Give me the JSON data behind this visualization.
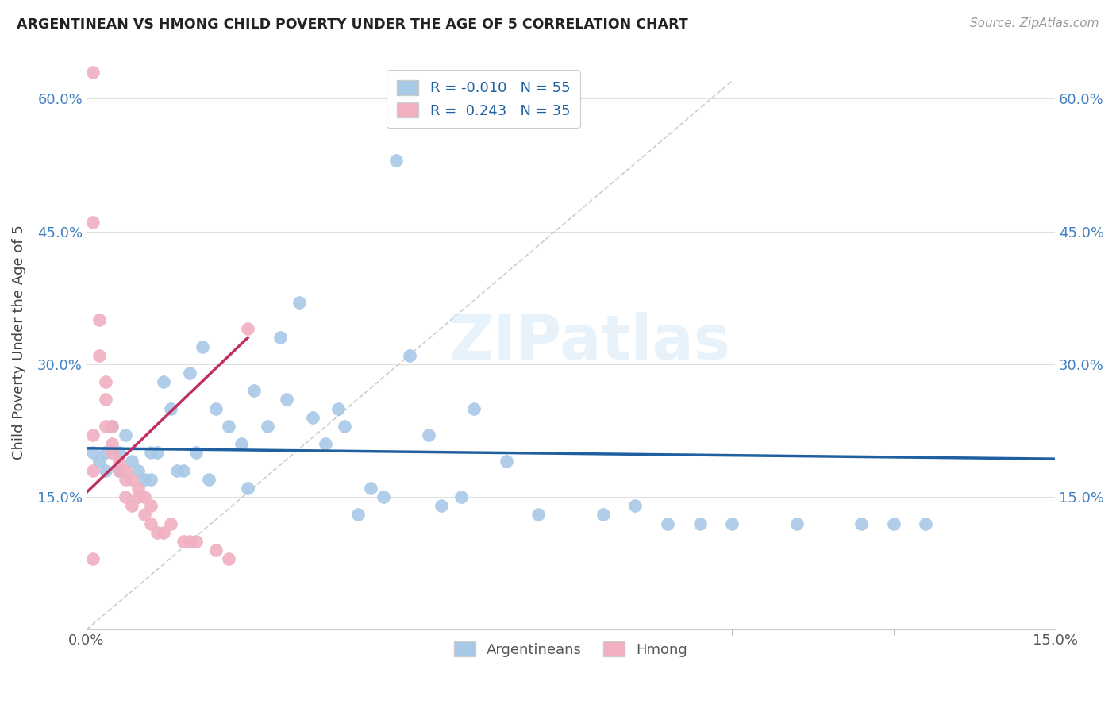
{
  "title": "ARGENTINEAN VS HMONG CHILD POVERTY UNDER THE AGE OF 5 CORRELATION CHART",
  "source": "Source: ZipAtlas.com",
  "ylabel": "Child Poverty Under the Age of 5",
  "xlim": [
    0.0,
    0.15
  ],
  "ylim": [
    0.0,
    0.65
  ],
  "yticks": [
    0.15,
    0.3,
    0.45,
    0.6
  ],
  "ytick_labels": [
    "15.0%",
    "30.0%",
    "45.0%",
    "60.0%"
  ],
  "xtick_left": "0.0%",
  "xtick_right": "15.0%",
  "background_color": "#ffffff",
  "grid_color": "#e0e0e0",
  "watermark_text": "ZIPatlas",
  "legend_r_arg": "-0.010",
  "legend_n_arg": "55",
  "legend_r_hmong": "0.243",
  "legend_n_hmong": "35",
  "arg_color": "#a8c8e8",
  "hmong_color": "#f0b0c0",
  "arg_trend_color": "#2060a0",
  "hmong_trend_color": "#c03060",
  "diag_color": "#cccccc",
  "tick_color": "#4080c0",
  "arg_x": [
    0.001,
    0.002,
    0.003,
    0.003,
    0.004,
    0.005,
    0.005,
    0.006,
    0.007,
    0.008,
    0.009,
    0.01,
    0.01,
    0.011,
    0.012,
    0.013,
    0.014,
    0.015,
    0.016,
    0.017,
    0.018,
    0.019,
    0.02,
    0.022,
    0.024,
    0.025,
    0.026,
    0.028,
    0.03,
    0.031,
    0.033,
    0.035,
    0.037,
    0.039,
    0.04,
    0.042,
    0.044,
    0.046,
    0.048,
    0.05,
    0.053,
    0.055,
    0.058,
    0.06,
    0.065,
    0.07,
    0.08,
    0.085,
    0.09,
    0.095,
    0.1,
    0.11,
    0.12,
    0.125,
    0.13
  ],
  "arg_y": [
    0.2,
    0.19,
    0.2,
    0.18,
    0.23,
    0.2,
    0.18,
    0.22,
    0.19,
    0.18,
    0.17,
    0.2,
    0.17,
    0.2,
    0.28,
    0.25,
    0.18,
    0.18,
    0.29,
    0.2,
    0.32,
    0.17,
    0.25,
    0.23,
    0.21,
    0.16,
    0.27,
    0.23,
    0.33,
    0.26,
    0.37,
    0.24,
    0.21,
    0.25,
    0.23,
    0.13,
    0.16,
    0.15,
    0.53,
    0.31,
    0.22,
    0.14,
    0.15,
    0.25,
    0.19,
    0.13,
    0.13,
    0.14,
    0.12,
    0.12,
    0.12,
    0.12,
    0.12,
    0.12,
    0.12
  ],
  "hmong_x": [
    0.001,
    0.001,
    0.001,
    0.002,
    0.002,
    0.003,
    0.003,
    0.003,
    0.004,
    0.004,
    0.004,
    0.005,
    0.005,
    0.006,
    0.006,
    0.006,
    0.007,
    0.007,
    0.008,
    0.008,
    0.009,
    0.009,
    0.01,
    0.01,
    0.011,
    0.012,
    0.013,
    0.015,
    0.016,
    0.017,
    0.02,
    0.022,
    0.025,
    0.001,
    0.001
  ],
  "hmong_y": [
    0.63,
    0.22,
    0.18,
    0.35,
    0.31,
    0.28,
    0.26,
    0.23,
    0.23,
    0.21,
    0.2,
    0.19,
    0.18,
    0.18,
    0.17,
    0.15,
    0.17,
    0.14,
    0.16,
    0.15,
    0.15,
    0.13,
    0.14,
    0.12,
    0.11,
    0.11,
    0.12,
    0.1,
    0.1,
    0.1,
    0.09,
    0.08,
    0.34,
    0.46,
    0.08
  ],
  "arg_trend_x": [
    0.0,
    0.15
  ],
  "arg_trend_y": [
    0.205,
    0.193
  ],
  "hmong_trend_x": [
    0.0,
    0.025
  ],
  "hmong_trend_y": [
    0.155,
    0.33
  ]
}
